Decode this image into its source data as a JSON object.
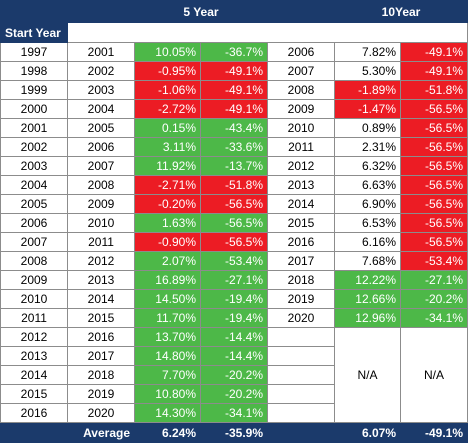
{
  "header": {
    "col5": "5 Year",
    "col10": "10Year",
    "start_year": "Start Year"
  },
  "rows": [
    {
      "start": "1997",
      "y5": "2001",
      "r5a": "10.05%",
      "r5b": "-36.7%",
      "y10": "2006",
      "r10a": "7.82%",
      "r10b": "-49.1%"
    },
    {
      "start": "1998",
      "y5": "2002",
      "r5a": "-0.95%",
      "r5b": "-49.1%",
      "y10": "2007",
      "r10a": "5.30%",
      "r10b": "-49.1%"
    },
    {
      "start": "1999",
      "y5": "2003",
      "r5a": "-1.06%",
      "r5b": "-49.1%",
      "y10": "2008",
      "r10a": "-1.89%",
      "r10b": "-51.8%"
    },
    {
      "start": "2000",
      "y5": "2004",
      "r5a": "-2.72%",
      "r5b": "-49.1%",
      "y10": "2009",
      "r10a": "-1.47%",
      "r10b": "-56.5%"
    },
    {
      "start": "2001",
      "y5": "2005",
      "r5a": "0.15%",
      "r5b": "-43.4%",
      "y10": "2010",
      "r10a": "0.89%",
      "r10b": "-56.5%"
    },
    {
      "start": "2002",
      "y5": "2006",
      "r5a": "3.11%",
      "r5b": "-33.6%",
      "y10": "2011",
      "r10a": "2.31%",
      "r10b": "-56.5%"
    },
    {
      "start": "2003",
      "y5": "2007",
      "r5a": "11.92%",
      "r5b": "-13.7%",
      "y10": "2012",
      "r10a": "6.32%",
      "r10b": "-56.5%"
    },
    {
      "start": "2004",
      "y5": "2008",
      "r5a": "-2.71%",
      "r5b": "-51.8%",
      "y10": "2013",
      "r10a": "6.63%",
      "r10b": "-56.5%"
    },
    {
      "start": "2005",
      "y5": "2009",
      "r5a": "-0.20%",
      "r5b": "-56.5%",
      "y10": "2014",
      "r10a": "6.90%",
      "r10b": "-56.5%"
    },
    {
      "start": "2006",
      "y5": "2010",
      "r5a": "1.63%",
      "r5b": "-56.5%",
      "y10": "2015",
      "r10a": "6.53%",
      "r10b": "-56.5%"
    },
    {
      "start": "2007",
      "y5": "2011",
      "r5a": "-0.90%",
      "r5b": "-56.5%",
      "y10": "2016",
      "r10a": "6.16%",
      "r10b": "-56.5%"
    },
    {
      "start": "2008",
      "y5": "2012",
      "r5a": "2.07%",
      "r5b": "-53.4%",
      "y10": "2017",
      "r10a": "7.68%",
      "r10b": "-53.4%"
    },
    {
      "start": "2009",
      "y5": "2013",
      "r5a": "16.89%",
      "r5b": "-27.1%",
      "y10": "2018",
      "r10a": "12.22%",
      "r10b": "-27.1%"
    },
    {
      "start": "2010",
      "y5": "2014",
      "r5a": "14.50%",
      "r5b": "-19.4%",
      "y10": "2019",
      "r10a": "12.66%",
      "r10b": "-20.2%"
    },
    {
      "start": "2011",
      "y5": "2015",
      "r5a": "11.70%",
      "r5b": "-19.4%",
      "y10": "2020",
      "r10a": "12.96%",
      "r10b": "-34.1%"
    },
    {
      "start": "2012",
      "y5": "2016",
      "r5a": "13.70%",
      "r5b": "-14.4%"
    },
    {
      "start": "2013",
      "y5": "2017",
      "r5a": "14.80%",
      "r5b": "-14.4%"
    },
    {
      "start": "2014",
      "y5": "2018",
      "r5a": "7.70%",
      "r5b": "-20.2%"
    },
    {
      "start": "2015",
      "y5": "2019",
      "r5a": "10.80%",
      "r5b": "-20.2%"
    },
    {
      "start": "2016",
      "y5": "2020",
      "r5a": "14.30%",
      "r5b": "-34.1%"
    }
  ],
  "na": {
    "a": "N/A",
    "b": "N/A"
  },
  "average": {
    "label": "Average",
    "a5": "6.24%",
    "b5": "-35.9%",
    "a10": "6.07%",
    "b10": "-49.1%"
  },
  "colors": {
    "header": "#1b3a6b",
    "positive": "#4db848",
    "negative": "#ec1c24"
  }
}
